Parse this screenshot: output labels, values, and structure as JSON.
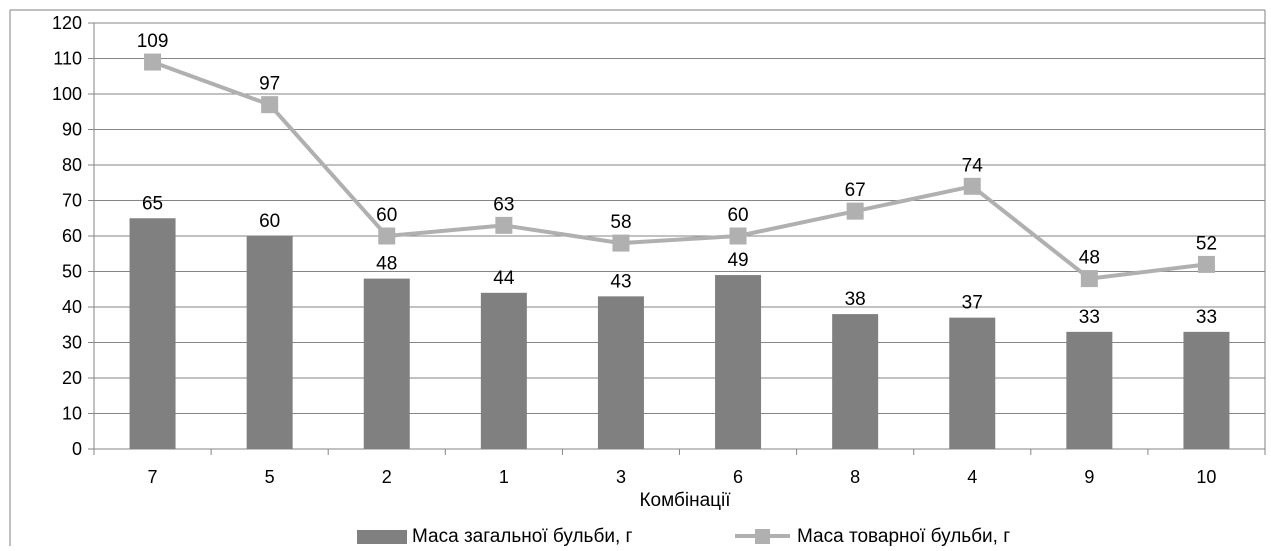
{
  "chart_data": {
    "type": "bar",
    "categories": [
      "7",
      "5",
      "2",
      "1",
      "3",
      "6",
      "8",
      "4",
      "9",
      "10"
    ],
    "series": [
      {
        "name": "Маса загальної бульби, г",
        "type": "bar",
        "color": "#808080",
        "values": [
          65,
          60,
          48,
          44,
          43,
          49,
          38,
          37,
          33,
          33
        ]
      },
      {
        "name": "Маса товарної бульби, г",
        "type": "line",
        "color": "#b0b0b0",
        "marker": "square",
        "values": [
          109,
          97,
          60,
          63,
          58,
          60,
          67,
          74,
          48,
          52
        ]
      }
    ],
    "xlabel": "Комбінації",
    "ylabel": "",
    "ylim": [
      0,
      120
    ],
    "yticks": [
      0,
      10,
      20,
      30,
      40,
      50,
      60,
      70,
      80,
      90,
      100,
      110,
      120
    ],
    "grid": true,
    "legend": "bottom",
    "data_labels": true
  }
}
